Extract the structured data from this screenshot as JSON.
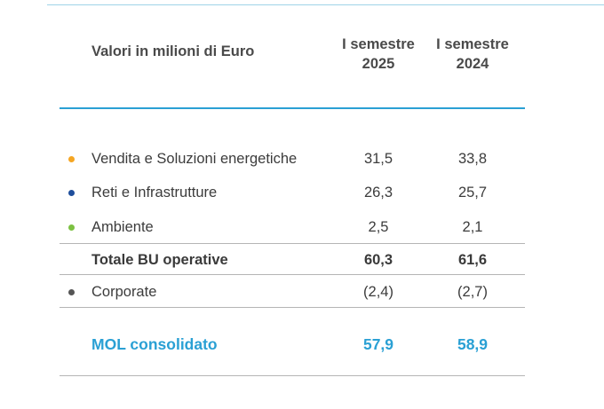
{
  "table": {
    "header_label": "Valori in milioni di Euro",
    "columns": [
      {
        "line1": "I semestre",
        "line2": "2025"
      },
      {
        "line1": "I semestre",
        "line2": "2024"
      }
    ],
    "rows": [
      {
        "label": "Vendita e Soluzioni energetiche",
        "v2025": "31,5",
        "v2024": "33,8",
        "bullet_color": "#f5a623"
      },
      {
        "label": "Reti e Infrastrutture",
        "v2025": "26,3",
        "v2024": "25,7",
        "bullet_color": "#1f4e9c"
      },
      {
        "label": "Ambiente",
        "v2025": "2,5",
        "v2024": "2,1",
        "bullet_color": "#7cc142"
      },
      {
        "label": "Totale BU operative",
        "v2025": "60,3",
        "v2024": "61,6"
      },
      {
        "label": "Corporate",
        "v2025": "(2,4)",
        "v2024": "(2,7)",
        "bullet_color": "#555555"
      },
      {
        "label": "MOL consolidato",
        "v2025": "57,9",
        "v2024": "58,9"
      }
    ]
  },
  "colors": {
    "accent": "#2aa0d4",
    "text": "#3c3c3c",
    "rule": "#b5b5b5"
  }
}
